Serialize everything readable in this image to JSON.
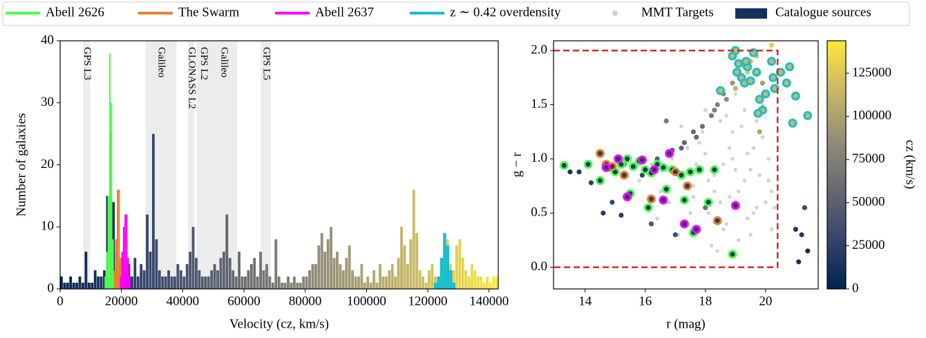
{
  "chart_data": [
    {
      "type": "histogram",
      "x_label": "Velocity (cz, km/s)",
      "y_label": "Number of galaxies",
      "xlim": [
        0,
        143000
      ],
      "ylim": [
        0,
        40
      ],
      "xticks": [
        0,
        20000,
        40000,
        60000,
        80000,
        100000,
        120000,
        140000
      ],
      "yticks": [
        0,
        10,
        20,
        30,
        40
      ],
      "bands": [
        {
          "label": "GPS L3",
          "start": 7500,
          "end": 9800
        },
        {
          "label": "Galileo",
          "start": 27800,
          "end": 38000
        },
        {
          "label": "GLONASS L2",
          "start": 41800,
          "end": 43800
        },
        {
          "label": "GPS L2",
          "start": 44500,
          "end": 49000
        },
        {
          "label": "Galileo",
          "start": 49000,
          "end": 57800
        },
        {
          "label": "GPS L5",
          "start": 65500,
          "end": 68800
        }
      ],
      "band_color": "#ececec",
      "series": [
        {
          "name": "Abell 2626",
          "color": "#4dff4d",
          "histtype": "stepfilled",
          "bins": [
            14500,
            15000,
            15500,
            16000,
            16500,
            17000,
            17500,
            18000
          ],
          "values": [
            2,
            6,
            15,
            38,
            30,
            8,
            2
          ]
        },
        {
          "name": "The Swarm",
          "color": "#e8822d",
          "histtype": "stepfilled",
          "bins": [
            17500,
            18000,
            18500,
            19000,
            19500,
            20000,
            20500
          ],
          "values": [
            3,
            8,
            16,
            16,
            5,
            2
          ]
        },
        {
          "name": "Abell 2637",
          "color": "#ff00ff",
          "histtype": "stepfilled",
          "bins": [
            19500,
            20000,
            20500,
            21000,
            21500,
            22000,
            22500,
            23000
          ],
          "values": [
            2,
            6,
            10,
            12,
            12,
            5,
            2
          ]
        },
        {
          "name": "z ∼ 0.42 overdensity",
          "color": "#17becf",
          "histtype": "stepfilled",
          "bins": [
            122000,
            123000,
            124000,
            125000,
            126000,
            127000,
            128000,
            129000
          ],
          "values": [
            1,
            2,
            5,
            9,
            7,
            3,
            1
          ]
        },
        {
          "name": "Catalogue sources",
          "color": "#15305c",
          "histtype": "bar",
          "color_by": "cz",
          "bins": [
            0,
            1000,
            2000,
            3000,
            4000,
            5000,
            6000,
            7000,
            8000,
            9000,
            10000,
            11000,
            12000,
            13000,
            14000,
            15000,
            16000,
            17000,
            18000,
            19000,
            20000,
            21000,
            22000,
            23000,
            24000,
            25000,
            26000,
            27000,
            28000,
            29000,
            30000,
            31000,
            32000,
            33000,
            34000,
            35000,
            36000,
            37000,
            38000,
            39000,
            40000,
            41000,
            42000,
            43000,
            44000,
            45000,
            46000,
            47000,
            48000,
            49000,
            50000,
            51000,
            52000,
            53000,
            54000,
            55000,
            56000,
            57000,
            58000,
            59000,
            60000,
            61000,
            62000,
            63000,
            64000,
            65000,
            66000,
            67000,
            68000,
            69000,
            70000,
            71000,
            72000,
            73000,
            74000,
            75000,
            76000,
            77000,
            78000,
            79000,
            80000,
            81000,
            82000,
            83000,
            84000,
            85000,
            86000,
            87000,
            88000,
            89000,
            90000,
            91000,
            92000,
            93000,
            94000,
            95000,
            96000,
            97000,
            98000,
            99000,
            100000,
            101000,
            102000,
            103000,
            104000,
            105000,
            106000,
            107000,
            108000,
            109000,
            110000,
            111000,
            112000,
            113000,
            114000,
            115000,
            116000,
            117000,
            118000,
            119000,
            120000,
            121000,
            122000,
            123000,
            124000,
            125000,
            126000,
            127000,
            128000,
            129000,
            130000,
            131000,
            132000,
            133000,
            134000,
            135000,
            136000,
            137000,
            138000,
            139000,
            140000,
            141000,
            142000,
            143000
          ],
          "values": [
            2,
            1,
            1,
            2,
            1,
            1,
            2,
            1,
            6,
            1,
            1,
            3,
            2,
            2,
            3,
            15,
            25,
            14,
            6,
            4,
            5,
            3,
            4,
            2,
            5,
            2,
            4,
            3,
            12,
            6,
            25,
            8,
            3,
            2,
            2,
            3,
            2,
            2,
            4,
            3,
            2,
            4,
            6,
            10,
            5,
            3,
            2,
            2,
            2,
            3,
            4,
            3,
            5,
            6,
            12,
            5,
            3,
            2,
            6,
            2,
            2,
            3,
            4,
            5,
            2,
            6,
            3,
            4,
            2,
            1,
            8,
            2,
            1,
            1,
            2,
            1,
            2,
            1,
            1,
            2,
            2,
            3,
            4,
            4,
            7,
            9,
            6,
            8,
            10,
            5,
            6,
            4,
            3,
            5,
            7,
            3,
            2,
            2,
            4,
            1,
            2,
            1,
            3,
            1,
            4,
            2,
            2,
            3,
            4,
            2,
            5,
            10,
            7,
            4,
            8,
            16,
            9,
            3,
            2,
            1,
            3,
            4,
            2,
            1,
            5,
            6,
            8,
            4,
            3,
            7,
            8,
            5,
            3,
            2,
            4,
            3,
            2,
            2,
            1,
            2,
            1,
            2,
            2
          ]
        }
      ]
    },
    {
      "type": "scatter",
      "x_label": "r (mag)",
      "y_label": "g − r",
      "xlim": [
        12.95,
        21.75
      ],
      "ylim": [
        -0.2,
        2.09
      ],
      "xticks": [
        14,
        16,
        18,
        20
      ],
      "yticks": [
        {
          "value": 0,
          "label": "0.0"
        },
        0.5,
        {
          "value": 1,
          "label": "1.0"
        },
        1.5,
        {
          "value": 2,
          "label": "2.0"
        }
      ],
      "selection_box": {
        "x": [
          12.95,
          20.4
        ],
        "y": [
          0,
          2
        ],
        "color": "#d62728"
      },
      "colorbar": {
        "label": "cz (km/s)",
        "lim": [
          0,
          143800
        ],
        "ticks": [
          0,
          25000,
          50000,
          75000,
          100000,
          125000
        ],
        "colormap": [
          "#00224e",
          "#35456c",
          "#666970",
          "#948e77",
          "#c8b866",
          "#fee838"
        ]
      },
      "series": [
        {
          "name": "MMT Targets",
          "color": "#d3d3d3",
          "x": [
            16.2,
            16.8,
            17.1,
            17.4,
            17.6,
            17.9,
            18.1,
            18.3,
            18.5,
            18.7,
            18.9,
            19.1,
            19.3,
            19.5,
            19.7,
            19.9,
            20.1,
            20.2,
            17.0,
            17.5,
            18.0,
            18.4,
            18.8,
            19.2,
            19.6,
            20.0,
            18.2,
            18.6,
            19.0,
            19.4,
            19.8,
            17.8,
            18.3,
            18.9,
            19.5,
            20.1,
            16.5,
            17.3,
            18.7,
            19.3,
            19.9,
            15.8,
            16.4,
            17.7,
            18.5,
            19.1,
            19.7,
            20.2,
            18.0,
            18.8,
            19.6,
            17.2,
            18.4,
            19.0,
            16.9,
            20.3,
            19.4,
            18.1,
            17.6,
            18.6
          ],
          "y": [
            0.95,
            0.6,
            0.3,
            1.1,
            0.75,
            1.25,
            0.5,
            0.85,
            1.35,
            0.4,
            1.0,
            0.7,
            1.45,
            0.9,
            0.55,
            1.2,
            0.8,
            0.35,
            0.9,
            0.5,
            1.05,
            1.5,
            0.65,
            1.3,
            1.1,
            0.6,
            0.2,
            0.95,
            1.6,
            0.45,
            0.85,
            1.15,
            0.7,
            1.25,
            0.3,
            1.0,
            0.7,
            0.85,
            1.4,
            0.8,
            1.5,
            0.8,
            0.45,
            0.95,
            0.6,
            0.25,
            1.35,
            0.7,
            1.45,
            1.1,
            0.5,
            1.3,
            0.15,
            0.9,
            1.0,
            0.55,
            1.05,
            0.8,
            0.65,
            0.35
          ]
        },
        {
          "x": [
            13.5,
            13.8,
            14.2,
            14.9,
            15.3,
            15.8,
            16.4,
            16.9,
            17.3,
            17.6,
            17.9,
            18.2,
            18.4,
            18.7,
            18.9,
            19.1,
            19.3,
            19.5,
            19.7,
            19.9,
            20.2,
            18.6,
            19.0,
            19.4,
            18.3,
            17.7,
            17.2,
            16.7,
            15.9,
            14.6,
            21.0,
            21.2,
            21.4,
            21.1,
            21.3,
            15.2,
            16.2,
            17.0,
            18.0,
            19.8
          ],
          "y": [
            0.88,
            0.88,
            0.78,
            0.6,
            0.95,
            0.98,
            1.0,
            1.08,
            1.15,
            1.25,
            1.3,
            1.4,
            1.5,
            1.55,
            1.7,
            1.78,
            1.85,
            1.9,
            1.95,
            1.7,
            2.05,
            1.6,
            1.65,
            1.8,
            1.45,
            1.2,
            1.1,
            1.35,
            0.85,
            0.5,
            0.35,
            0.3,
            0.15,
            0.05,
            0.55,
            0.48,
            0.4,
            0.3,
            0.55,
            1.25
          ],
          "c": [
            15000,
            18000,
            22000,
            30000,
            35000,
            40000,
            45000,
            50000,
            55000,
            60000,
            62000,
            70000,
            75000,
            85000,
            90000,
            100000,
            105000,
            115000,
            120000,
            95000,
            130000,
            80000,
            110000,
            125000,
            72000,
            58000,
            52000,
            65000,
            28000,
            20000,
            15000,
            20000,
            10000,
            12000,
            30000,
            25000,
            40000,
            35000,
            60000,
            100000
          ]
        },
        {
          "edgecolor": "#4dff4d",
          "color": "#1a3a66",
          "x": [
            13.3,
            14.1,
            14.5,
            14.8,
            15.0,
            15.2,
            15.4,
            15.6,
            15.8,
            16.0,
            16.2,
            16.4,
            16.6,
            16.9,
            17.2,
            17.5,
            17.8,
            18.1,
            18.3,
            15.5,
            16.1,
            17.3,
            17.6,
            18.9,
            16.7
          ],
          "y": [
            0.94,
            0.95,
            0.8,
            0.92,
            0.88,
            0.95,
            1.0,
            0.93,
            0.98,
            0.9,
            0.87,
            0.95,
            0.92,
            0.9,
            0.85,
            0.88,
            0.9,
            0.6,
            0.9,
            0.68,
            0.55,
            0.62,
            0.32,
            0.12,
            0.72
          ]
        },
        {
          "edgecolor": "#e8822d",
          "color": "#2a3d66",
          "x": [
            14.5,
            14.7,
            15.3,
            16.2,
            17.4,
            18.4,
            14.9,
            17.0
          ],
          "y": [
            1.05,
            0.95,
            0.85,
            0.63,
            0.75,
            0.43,
            0.93,
            0.88
          ]
        },
        {
          "edgecolor": "#ff00ff",
          "color": "#2a3d66",
          "x": [
            14.7,
            15.4,
            15.9,
            16.8,
            17.3,
            17.7,
            19.0,
            16.3,
            15.1,
            16.6
          ],
          "y": [
            0.92,
            0.65,
            0.99,
            1.05,
            0.4,
            0.35,
            0.57,
            0.9,
            1.0,
            0.62
          ]
        },
        {
          "edgecolor": "#17becf",
          "color": "#c8b866",
          "x": [
            18.5,
            18.9,
            19.0,
            19.1,
            19.2,
            19.3,
            19.4,
            19.5,
            19.6,
            19.7,
            19.8,
            19.9,
            20.0,
            20.2,
            20.3,
            20.5,
            20.7,
            20.8,
            20.9,
            21.0,
            19.05,
            19.35,
            19.75,
            20.25,
            21.4
          ],
          "y": [
            1.63,
            1.95,
            2.0,
            1.88,
            1.75,
            1.7,
            1.85,
            1.72,
            1.98,
            1.8,
            1.55,
            1.45,
            1.6,
            1.9,
            1.65,
            1.8,
            1.7,
            1.85,
            1.33,
            1.58,
            1.8,
            1.9,
            1.42,
            1.75,
            1.4
          ]
        }
      ]
    }
  ]
}
